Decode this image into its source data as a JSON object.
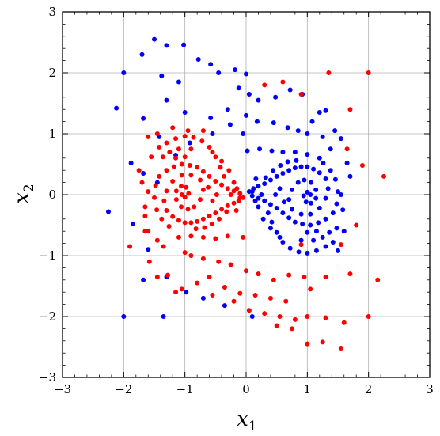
{
  "chart_data": {
    "type": "scatter",
    "title": "",
    "xlabel": "x",
    "xlabel_sub": "1",
    "ylabel": "x",
    "ylabel_sub": "2",
    "xlim": [
      -3,
      3
    ],
    "ylim": [
      -3,
      3
    ],
    "xticks": [
      -3,
      -2,
      -1,
      0,
      1,
      2,
      3
    ],
    "yticks": [
      -3,
      -2,
      -1,
      0,
      1,
      2,
      3
    ],
    "xtick_labels": [
      "−3",
      "−2",
      "−1",
      "0",
      "1",
      "2",
      "3"
    ],
    "ytick_labels": [
      "−3",
      "−2",
      "−1",
      "0",
      "1",
      "2",
      "3"
    ],
    "grid": true,
    "legend": "none",
    "series": [
      {
        "color": "#0000ff",
        "points": [
          [
            -1.5,
            2.55
          ],
          [
            -1.3,
            2.45
          ],
          [
            -1.02,
            2.46
          ],
          [
            -1.7,
            2.3
          ],
          [
            -2.0,
            2.0
          ],
          [
            -0.78,
            2.22
          ],
          [
            -0.58,
            2.14
          ],
          [
            -1.38,
            1.95
          ],
          [
            -1.1,
            1.85
          ],
          [
            -1.3,
            1.55
          ],
          [
            -2.12,
            1.42
          ],
          [
            -1.68,
            1.25
          ],
          [
            -1.0,
            1.35
          ],
          [
            -0.58,
            1.26
          ],
          [
            -0.26,
            1.15
          ],
          [
            -0.55,
            1.0
          ],
          [
            -1.42,
            0.95
          ],
          [
            -0.92,
            0.85
          ],
          [
            -1.15,
            0.65
          ],
          [
            -1.88,
            0.52
          ],
          [
            -1.68,
            0.35
          ],
          [
            -1.45,
            0.2
          ],
          [
            -2.25,
            -0.28
          ],
          [
            -1.85,
            -0.48
          ],
          [
            -1.6,
            -0.9
          ],
          [
            -1.68,
            -1.4
          ],
          [
            -1.3,
            -1.35
          ],
          [
            -2.0,
            -2.0
          ],
          [
            -1.35,
            -2.0
          ],
          [
            -0.98,
            -1.6
          ],
          [
            -0.7,
            -1.7
          ],
          [
            -0.35,
            -1.82
          ],
          [
            0.1,
            -2.0
          ],
          [
            -0.45,
            2.0
          ],
          [
            -0.18,
            2.05
          ],
          [
            0.0,
            1.98
          ],
          [
            -0.12,
            1.75
          ],
          [
            0.05,
            1.65
          ],
          [
            0.2,
            1.55
          ],
          [
            0.48,
            1.6
          ],
          [
            0.72,
            1.72
          ],
          [
            0.92,
            1.65
          ],
          [
            1.2,
            1.35
          ],
          [
            1.3,
            1.38
          ],
          [
            1.08,
            1.2
          ],
          [
            1.45,
            1.05
          ],
          [
            1.55,
            0.92
          ],
          [
            1.65,
            0.52
          ],
          [
            1.7,
            0.3
          ],
          [
            1.55,
            0.0
          ],
          [
            1.58,
            -0.25
          ],
          [
            1.48,
            -0.55
          ],
          [
            1.6,
            -0.6
          ],
          [
            1.5,
            -0.92
          ],
          [
            -0.3,
            1.4
          ],
          [
            0.0,
            1.3
          ],
          [
            -0.05,
            1.0
          ],
          [
            0.18,
            1.2
          ],
          [
            0.45,
            1.18
          ],
          [
            0.68,
            1.1
          ],
          [
            0.85,
            1.05
          ],
          [
            1.0,
            1.0
          ],
          [
            1.25,
            0.95
          ],
          [
            1.38,
            0.75
          ],
          [
            0.02,
            0.72
          ],
          [
            0.22,
            0.75
          ],
          [
            0.42,
            0.72
          ],
          [
            0.6,
            0.7
          ],
          [
            0.8,
            0.7
          ],
          [
            1.0,
            0.66
          ],
          [
            1.2,
            0.6
          ],
          [
            0.05,
            0.05
          ],
          [
            0.12,
            0.1
          ],
          [
            0.2,
            0.14
          ],
          [
            0.3,
            0.18
          ],
          [
            0.4,
            0.24
          ],
          [
            0.5,
            0.3
          ],
          [
            0.6,
            0.35
          ],
          [
            0.7,
            0.4
          ],
          [
            0.8,
            0.44
          ],
          [
            0.9,
            0.46
          ],
          [
            1.0,
            0.46
          ],
          [
            1.1,
            0.42
          ],
          [
            1.2,
            0.36
          ],
          [
            1.3,
            0.26
          ],
          [
            1.34,
            0.1
          ],
          [
            1.3,
            -0.06
          ],
          [
            1.2,
            -0.22
          ],
          [
            1.05,
            -0.32
          ],
          [
            0.9,
            -0.32
          ],
          [
            0.75,
            -0.24
          ],
          [
            0.7,
            -0.08
          ],
          [
            0.75,
            0.08
          ],
          [
            0.85,
            0.2
          ],
          [
            0.95,
            0.24
          ],
          [
            1.06,
            0.2
          ],
          [
            1.14,
            0.08
          ],
          [
            1.14,
            -0.06
          ],
          [
            1.06,
            -0.14
          ],
          [
            0.98,
            -0.12
          ],
          [
            0.94,
            -0.02
          ],
          [
            1.0,
            0.04
          ],
          [
            1.05,
            0.0
          ],
          [
            0.1,
            -0.02
          ],
          [
            0.2,
            -0.06
          ],
          [
            0.3,
            -0.1
          ],
          [
            0.4,
            -0.16
          ],
          [
            0.5,
            -0.22
          ],
          [
            0.6,
            -0.3
          ],
          [
            0.7,
            -0.38
          ],
          [
            0.8,
            -0.45
          ],
          [
            0.92,
            -0.48
          ],
          [
            1.05,
            -0.5
          ],
          [
            1.18,
            -0.46
          ],
          [
            1.3,
            -0.4
          ],
          [
            1.42,
            -0.3
          ],
          [
            1.48,
            -0.15
          ],
          [
            1.5,
            0.05
          ],
          [
            1.46,
            0.25
          ],
          [
            1.38,
            0.4
          ],
          [
            1.26,
            0.52
          ],
          [
            0.32,
            0.28
          ],
          [
            0.44,
            0.4
          ],
          [
            0.56,
            0.48
          ],
          [
            0.68,
            0.54
          ],
          [
            0.82,
            0.56
          ],
          [
            0.36,
            -0.3
          ],
          [
            0.42,
            -0.45
          ],
          [
            0.5,
            -0.62
          ],
          [
            0.6,
            -0.78
          ],
          [
            0.72,
            -0.88
          ],
          [
            0.86,
            -0.94
          ],
          [
            1.0,
            -0.96
          ],
          [
            1.15,
            -0.92
          ],
          [
            1.3,
            -0.85
          ],
          [
            1.42,
            -0.78
          ],
          [
            0.2,
            -0.2
          ],
          [
            0.28,
            -0.4
          ],
          [
            0.4,
            -0.55
          ],
          [
            0.55,
            -0.7
          ],
          [
            0.9,
            -0.75
          ],
          [
            1.1,
            -0.75
          ],
          [
            1.25,
            -0.7
          ],
          [
            1.36,
            -0.62
          ],
          [
            1.0,
            -0.62
          ],
          [
            1.15,
            -0.6
          ],
          [
            0.25,
            0.0
          ],
          [
            0.55,
            0.1
          ],
          [
            0.48,
            0.0
          ],
          [
            0.62,
            -0.12
          ],
          [
            0.16,
            0.26
          ],
          [
            0.1,
            0.05
          ],
          [
            0.15,
            -0.1
          ]
        ]
      },
      {
        "color": "#ff0000",
        "points": [
          [
            -0.05,
            -0.05
          ],
          [
            -0.12,
            -0.1
          ],
          [
            -0.2,
            -0.14
          ],
          [
            -0.3,
            -0.18
          ],
          [
            -0.4,
            -0.24
          ],
          [
            -0.5,
            -0.3
          ],
          [
            -0.6,
            -0.35
          ],
          [
            -0.7,
            -0.4
          ],
          [
            -0.8,
            -0.44
          ],
          [
            -0.9,
            -0.46
          ],
          [
            -1.0,
            -0.46
          ],
          [
            -1.1,
            -0.42
          ],
          [
            -1.2,
            -0.36
          ],
          [
            -1.3,
            -0.26
          ],
          [
            -1.34,
            -0.1
          ],
          [
            -1.3,
            0.06
          ],
          [
            -1.2,
            0.22
          ],
          [
            -1.05,
            0.32
          ],
          [
            -0.9,
            0.32
          ],
          [
            -0.75,
            0.24
          ],
          [
            -0.7,
            0.08
          ],
          [
            -0.75,
            -0.08
          ],
          [
            -0.85,
            -0.2
          ],
          [
            -0.95,
            -0.24
          ],
          [
            -1.06,
            -0.2
          ],
          [
            -1.14,
            -0.08
          ],
          [
            -1.14,
            0.06
          ],
          [
            -1.06,
            0.14
          ],
          [
            -0.98,
            0.12
          ],
          [
            -0.94,
            0.02
          ],
          [
            -1.0,
            -0.04
          ],
          [
            -1.05,
            0.0
          ],
          [
            -0.1,
            0.02
          ],
          [
            -0.2,
            0.06
          ],
          [
            -0.3,
            0.1
          ],
          [
            -0.4,
            0.16
          ],
          [
            -0.5,
            0.22
          ],
          [
            -0.6,
            0.3
          ],
          [
            -0.7,
            0.38
          ],
          [
            -0.8,
            0.45
          ],
          [
            -0.92,
            0.48
          ],
          [
            -1.05,
            0.5
          ],
          [
            -1.18,
            0.46
          ],
          [
            -1.3,
            0.4
          ],
          [
            -1.42,
            0.3
          ],
          [
            -1.48,
            0.15
          ],
          [
            -1.5,
            -0.05
          ],
          [
            -1.46,
            -0.25
          ],
          [
            -1.38,
            -0.4
          ],
          [
            -1.26,
            -0.52
          ],
          [
            -0.32,
            -0.28
          ],
          [
            -0.44,
            -0.4
          ],
          [
            -0.56,
            -0.48
          ],
          [
            -0.68,
            -0.54
          ],
          [
            -0.82,
            -0.56
          ],
          [
            -0.36,
            0.3
          ],
          [
            -0.42,
            0.45
          ],
          [
            -0.5,
            0.62
          ],
          [
            -0.6,
            0.78
          ],
          [
            -0.72,
            0.88
          ],
          [
            -0.86,
            0.94
          ],
          [
            -1.0,
            0.96
          ],
          [
            -1.15,
            0.92
          ],
          [
            -1.3,
            0.85
          ],
          [
            -1.42,
            0.78
          ],
          [
            -0.2,
            0.2
          ],
          [
            -0.28,
            0.4
          ],
          [
            -0.4,
            0.55
          ],
          [
            -0.55,
            0.7
          ],
          [
            -0.9,
            0.75
          ],
          [
            -1.1,
            0.75
          ],
          [
            -1.25,
            0.7
          ],
          [
            -1.36,
            0.62
          ],
          [
            -1.0,
            0.62
          ],
          [
            -1.15,
            0.6
          ],
          [
            -0.25,
            0.0
          ],
          [
            -0.55,
            -0.1
          ],
          [
            -0.48,
            0.0
          ],
          [
            -0.62,
            0.12
          ],
          [
            -0.16,
            -0.26
          ],
          [
            -0.1,
            -0.05
          ],
          [
            -0.15,
            0.1
          ],
          [
            -1.2,
            1.1
          ],
          [
            -0.95,
            1.05
          ],
          [
            -0.7,
            1.05
          ],
          [
            -1.45,
            1.0
          ],
          [
            -1.6,
            0.95
          ],
          [
            -1.55,
            0.62
          ],
          [
            -1.75,
            0.4
          ],
          [
            -1.7,
            0.2
          ],
          [
            -1.6,
            0.05
          ],
          [
            -1.65,
            -0.2
          ],
          [
            -1.65,
            -0.35
          ],
          [
            -1.6,
            -0.6
          ],
          [
            -1.45,
            -0.75
          ],
          [
            -1.35,
            -0.85
          ],
          [
            -1.58,
            -1.1
          ],
          [
            -1.28,
            -1.32
          ],
          [
            -1.05,
            -1.55
          ],
          [
            -0.9,
            -1.0
          ],
          [
            -0.7,
            -1.05
          ],
          [
            -0.45,
            -1.1
          ],
          [
            -0.25,
            -1.15
          ],
          [
            -1.1,
            -0.7
          ],
          [
            -0.9,
            -0.68
          ],
          [
            -0.7,
            -0.7
          ],
          [
            -0.5,
            -0.72
          ],
          [
            -0.3,
            -0.68
          ],
          [
            -0.05,
            -0.7
          ],
          [
            0.0,
            -1.25
          ],
          [
            0.2,
            -1.3
          ],
          [
            0.45,
            -1.4
          ],
          [
            0.7,
            -1.32
          ],
          [
            0.95,
            -1.35
          ],
          [
            1.3,
            -1.35
          ],
          [
            1.7,
            -1.3
          ],
          [
            2.15,
            -1.4
          ],
          [
            -0.6,
            -1.35
          ],
          [
            -0.35,
            -1.52
          ],
          [
            -0.1,
            -1.62
          ],
          [
            0.15,
            -1.65
          ],
          [
            0.4,
            -1.7
          ],
          [
            0.65,
            -1.75
          ],
          [
            1.05,
            -1.55
          ],
          [
            -0.8,
            -1.45
          ],
          [
            -0.55,
            -1.65
          ],
          [
            -0.2,
            -1.75
          ],
          [
            0.05,
            -1.9
          ],
          [
            0.3,
            -1.95
          ],
          [
            0.55,
            -2.0
          ],
          [
            0.8,
            -2.05
          ],
          [
            1.0,
            -2.0
          ],
          [
            1.3,
            -2.02
          ],
          [
            1.6,
            -2.1
          ],
          [
            2.0,
            -2.0
          ],
          [
            0.5,
            -2.15
          ],
          [
            0.75,
            -2.2
          ],
          [
            1.0,
            -2.45
          ],
          [
            1.25,
            -2.42
          ],
          [
            1.55,
            -2.52
          ],
          [
            1.35,
            2.0
          ],
          [
            2.0,
            2.0
          ],
          [
            1.7,
            1.4
          ],
          [
            0.3,
            1.8
          ],
          [
            0.6,
            1.85
          ],
          [
            0.9,
            1.65
          ],
          [
            1.65,
            0.75
          ],
          [
            1.9,
            0.48
          ],
          [
            2.25,
            0.3
          ],
          [
            1.8,
            -0.5
          ],
          [
            1.55,
            -0.82
          ],
          [
            0.9,
            -0.82
          ],
          [
            -1.15,
            -1.6
          ],
          [
            -1.9,
            -0.85
          ],
          [
            -1.45,
            -1.35
          ],
          [
            -1.0,
            -0.95
          ],
          [
            -1.65,
            -0.6
          ]
        ]
      }
    ]
  }
}
